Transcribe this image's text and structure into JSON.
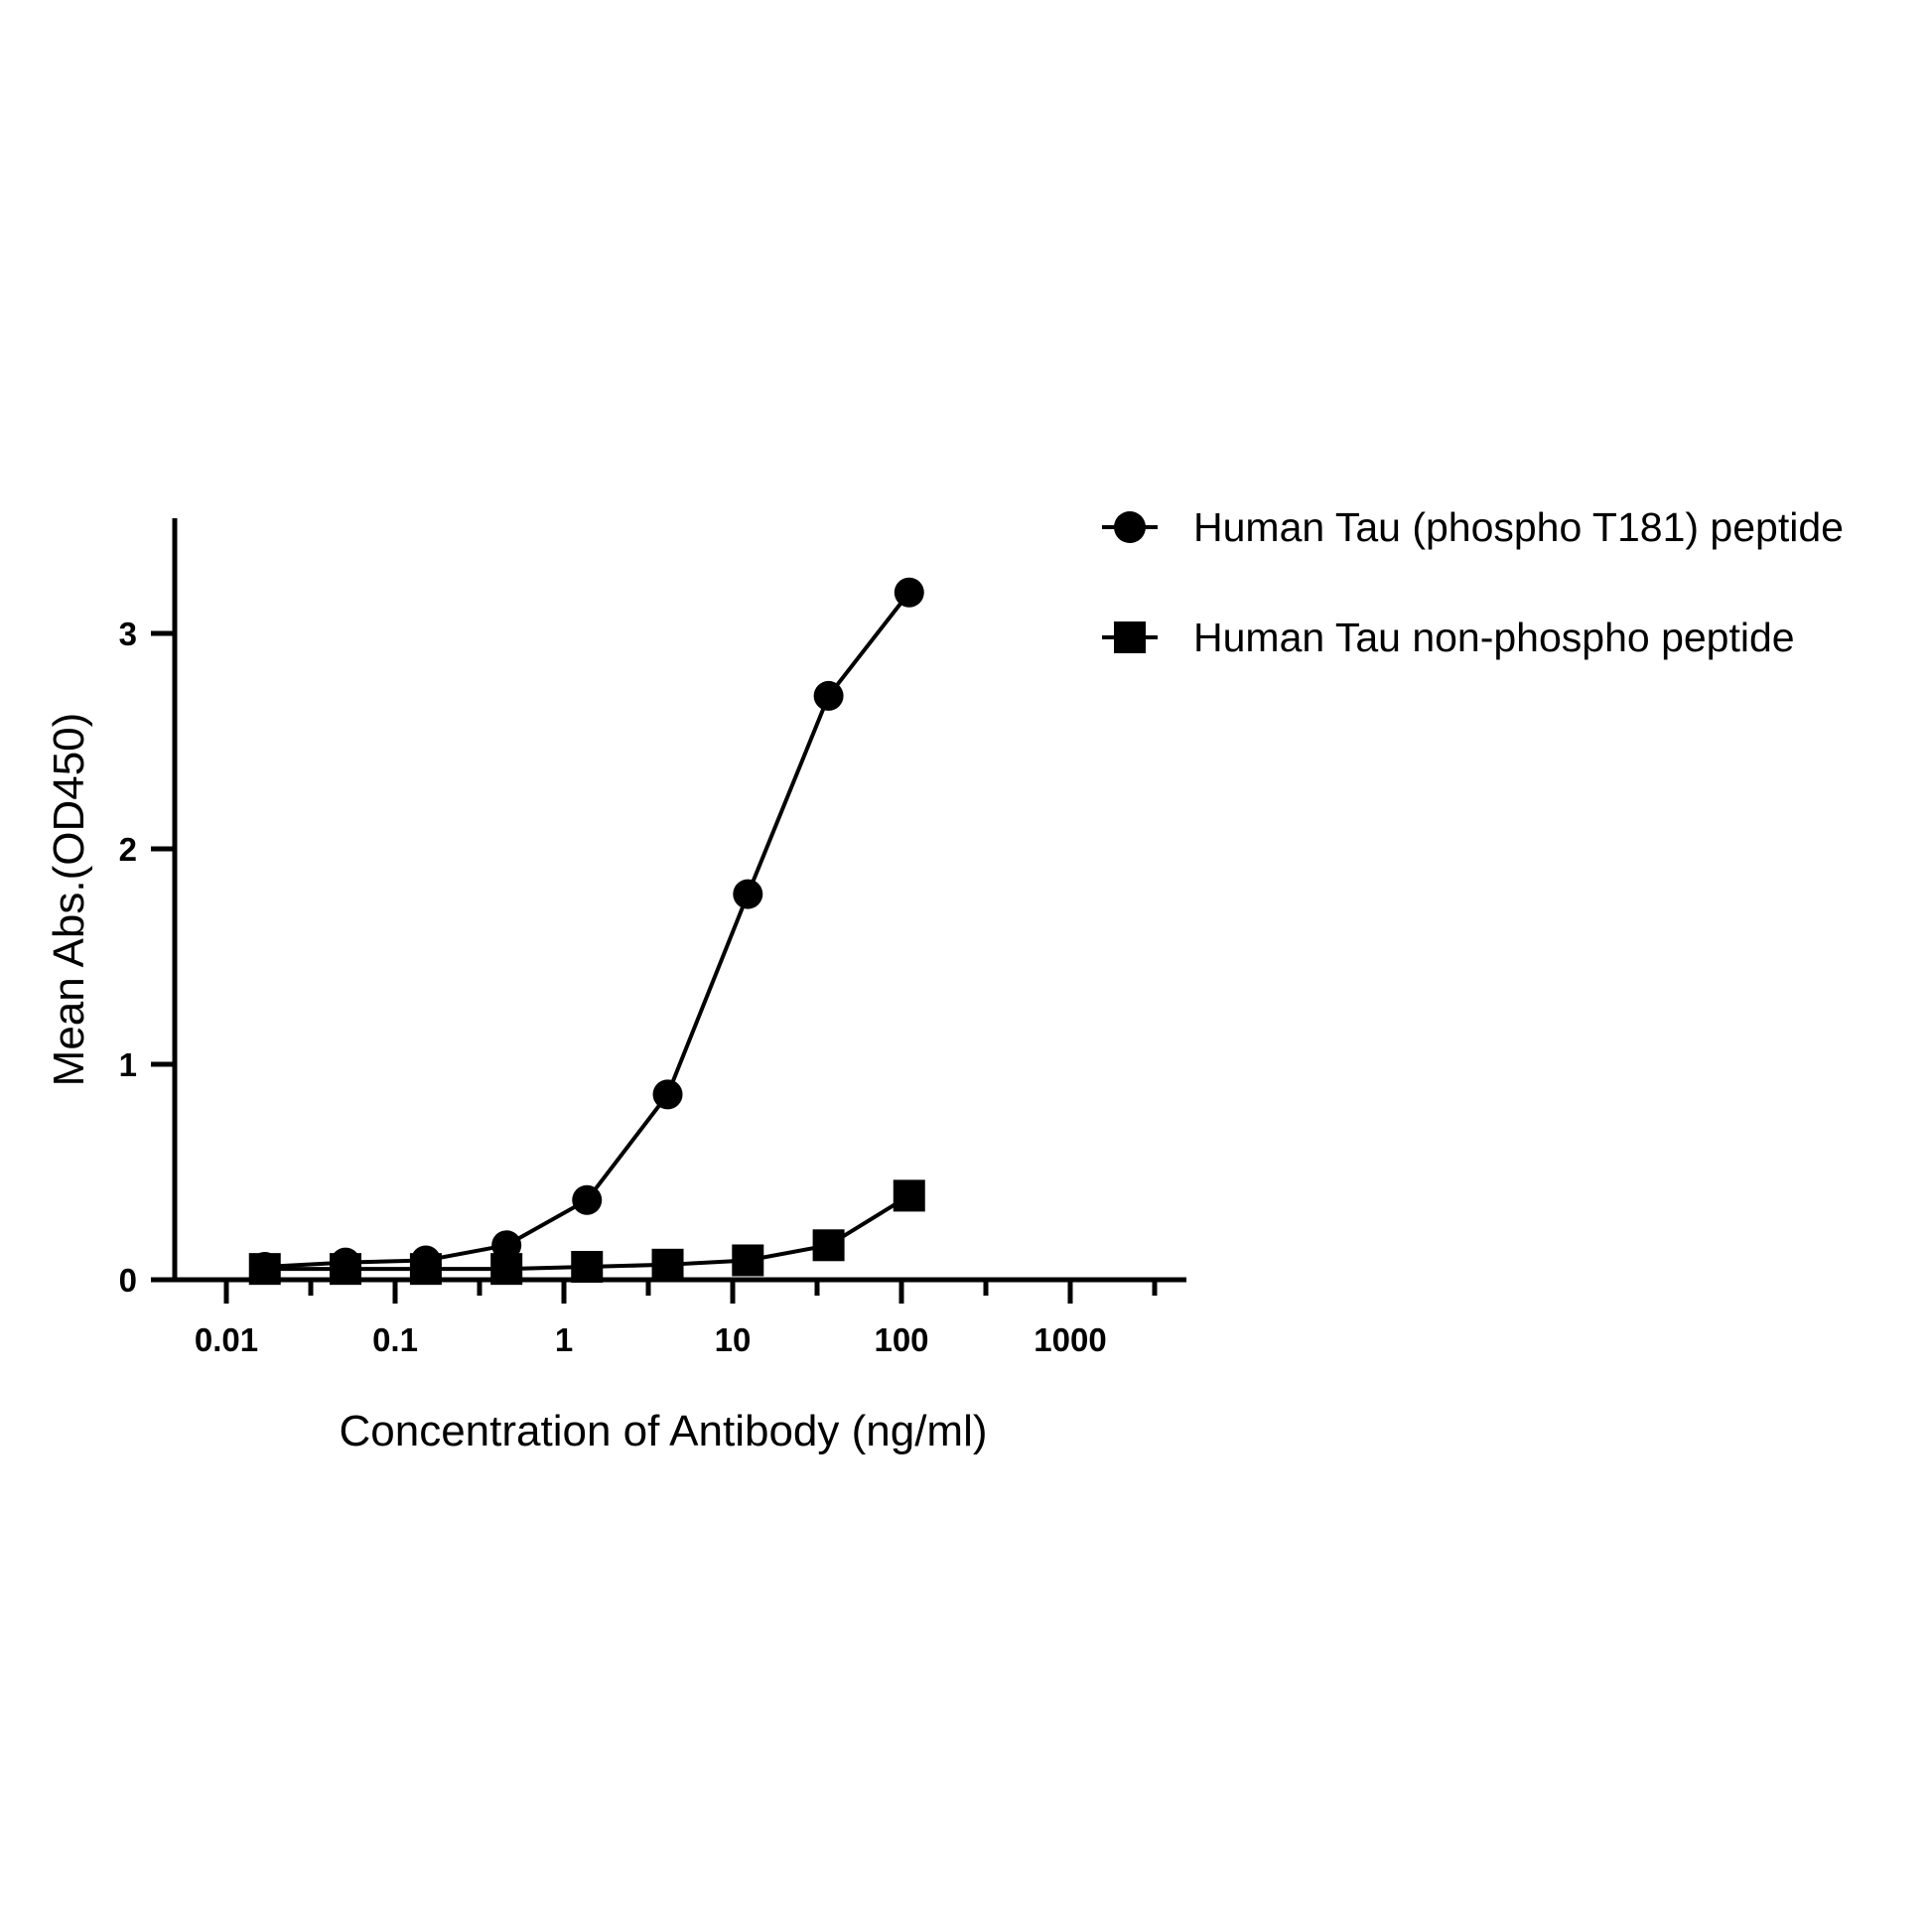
{
  "chart_data": {
    "type": "line",
    "title": "",
    "xlabel": "Concentration of Antibody (ng/ml)",
    "ylabel": "Mean Abs.(OD450)",
    "x_scale": "log",
    "xlim": [
      0.004,
      4000
    ],
    "ylim": [
      0,
      3.5
    ],
    "x_ticks": [
      {
        "value": 0.01,
        "label": "0.01"
      },
      {
        "value": 0.1,
        "label": "0.1"
      },
      {
        "value": 1,
        "label": "1"
      },
      {
        "value": 10,
        "label": "10"
      },
      {
        "value": 100,
        "label": "100"
      },
      {
        "value": 1000,
        "label": "1000"
      }
    ],
    "y_ticks": [
      {
        "value": 0,
        "label": "0"
      },
      {
        "value": 1,
        "label": "1"
      },
      {
        "value": 2,
        "label": "2"
      },
      {
        "value": 3,
        "label": "3"
      }
    ],
    "grid": false,
    "legend_position": "top-right",
    "series": [
      {
        "name": "Human Tau (phospho T181) peptide",
        "marker": "circle",
        "color": "#000000",
        "points": [
          {
            "x": 0.0169,
            "y": 0.06
          },
          {
            "x": 0.0508,
            "y": 0.08
          },
          {
            "x": 0.152,
            "y": 0.09
          },
          {
            "x": 0.457,
            "y": 0.16
          },
          {
            "x": 1.37,
            "y": 0.37
          },
          {
            "x": 4.12,
            "y": 0.86
          },
          {
            "x": 12.3,
            "y": 1.79
          },
          {
            "x": 37.0,
            "y": 2.71
          },
          {
            "x": 111.1,
            "y": 3.19
          }
        ]
      },
      {
        "name": "Human Tau non-phospho peptide",
        "marker": "square",
        "color": "#000000",
        "points": [
          {
            "x": 0.0169,
            "y": 0.05
          },
          {
            "x": 0.0508,
            "y": 0.05
          },
          {
            "x": 0.152,
            "y": 0.05
          },
          {
            "x": 0.457,
            "y": 0.05
          },
          {
            "x": 1.37,
            "y": 0.06
          },
          {
            "x": 4.12,
            "y": 0.07
          },
          {
            "x": 12.3,
            "y": 0.09
          },
          {
            "x": 37.0,
            "y": 0.16
          },
          {
            "x": 111.1,
            "y": 0.39
          }
        ]
      }
    ]
  }
}
